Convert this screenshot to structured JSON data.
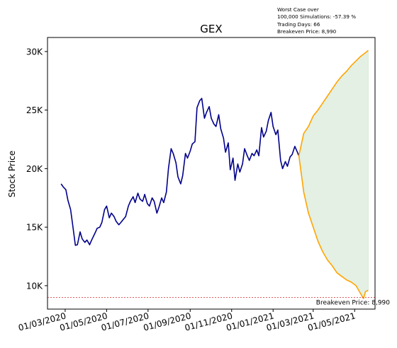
{
  "chart_data": {
    "type": "line",
    "title": "GEX",
    "xlabel": "",
    "ylabel": "Stock Price",
    "ylim": [
      8000,
      31200
    ],
    "y_ticks": [
      10000,
      15000,
      20000,
      25000,
      30000
    ],
    "y_tick_labels": [
      "10K",
      "15K",
      "20K",
      "25K",
      "30K"
    ],
    "x_ticks": [
      "2020-03-01",
      "2020-05-01",
      "2020-07-01",
      "2020-09-01",
      "2020-11-01",
      "2021-01-01",
      "2021-03-01",
      "2021-05-01"
    ],
    "x_tick_labels": [
      "01/03/2020",
      "01/05/2020",
      "01/07/2020",
      "01/09/2020",
      "01/11/2020",
      "01/01/2021",
      "01/03/2021",
      "01/05/2021"
    ],
    "xlim": [
      "2020-02-04",
      "2021-05-31"
    ],
    "grid": false,
    "annotation_lines": [
      "Worst Case over",
      "100,000 Simulations: -57.39 %",
      "Trading Days: 66",
      "Breakeven Price: 8,990"
    ],
    "breakeven": {
      "value": 8990,
      "label": "Breakeven Price: 8,990",
      "color": "#d62728"
    },
    "series": [
      {
        "color": "#00008b",
        "points": [
          [
            "2020-02-24",
            18700
          ],
          [
            "2020-02-27",
            18450
          ],
          [
            "2020-03-02",
            18200
          ],
          [
            "2020-03-05",
            17300
          ],
          [
            "2020-03-09",
            16500
          ],
          [
            "2020-03-12",
            15200
          ],
          [
            "2020-03-16",
            13450
          ],
          [
            "2020-03-19",
            13500
          ],
          [
            "2020-03-23",
            14600
          ],
          [
            "2020-03-26",
            14000
          ],
          [
            "2020-03-30",
            13700
          ],
          [
            "2020-04-02",
            13900
          ],
          [
            "2020-04-06",
            13500
          ],
          [
            "2020-04-09",
            13900
          ],
          [
            "2020-04-14",
            14500
          ],
          [
            "2020-04-17",
            14900
          ],
          [
            "2020-04-21",
            15000
          ],
          [
            "2020-04-24",
            15400
          ],
          [
            "2020-04-28",
            16500
          ],
          [
            "2020-05-01",
            16800
          ],
          [
            "2020-05-05",
            15800
          ],
          [
            "2020-05-08",
            16200
          ],
          [
            "2020-05-12",
            15900
          ],
          [
            "2020-05-15",
            15500
          ],
          [
            "2020-05-19",
            15200
          ],
          [
            "2020-05-22",
            15400
          ],
          [
            "2020-05-26",
            15700
          ],
          [
            "2020-05-29",
            15900
          ],
          [
            "2020-06-02",
            16800
          ],
          [
            "2020-06-05",
            17200
          ],
          [
            "2020-06-09",
            17600
          ],
          [
            "2020-06-12",
            17100
          ],
          [
            "2020-06-16",
            17900
          ],
          [
            "2020-06-19",
            17400
          ],
          [
            "2020-06-23",
            17200
          ],
          [
            "2020-06-26",
            17800
          ],
          [
            "2020-06-30",
            17000
          ],
          [
            "2020-07-03",
            16800
          ],
          [
            "2020-07-07",
            17500
          ],
          [
            "2020-07-10",
            17200
          ],
          [
            "2020-07-14",
            16200
          ],
          [
            "2020-07-17",
            16700
          ],
          [
            "2020-07-21",
            17500
          ],
          [
            "2020-07-24",
            17100
          ],
          [
            "2020-07-28",
            18000
          ],
          [
            "2020-07-31",
            20000
          ],
          [
            "2020-08-04",
            21700
          ],
          [
            "2020-08-07",
            21300
          ],
          [
            "2020-08-11",
            20500
          ],
          [
            "2020-08-14",
            19300
          ],
          [
            "2020-08-18",
            18700
          ],
          [
            "2020-08-21",
            19400
          ],
          [
            "2020-08-25",
            21300
          ],
          [
            "2020-08-28",
            20900
          ],
          [
            "2020-09-01",
            21500
          ],
          [
            "2020-09-04",
            22100
          ],
          [
            "2020-09-08",
            22300
          ],
          [
            "2020-09-11",
            25200
          ],
          [
            "2020-09-15",
            25800
          ],
          [
            "2020-09-18",
            26000
          ],
          [
            "2020-09-22",
            24300
          ],
          [
            "2020-09-25",
            24800
          ],
          [
            "2020-09-29",
            25300
          ],
          [
            "2020-10-02",
            24300
          ],
          [
            "2020-10-06",
            23800
          ],
          [
            "2020-10-09",
            23600
          ],
          [
            "2020-10-13",
            24600
          ],
          [
            "2020-10-16",
            23400
          ],
          [
            "2020-10-20",
            22600
          ],
          [
            "2020-10-23",
            21400
          ],
          [
            "2020-10-27",
            22200
          ],
          [
            "2020-10-30",
            19900
          ],
          [
            "2020-11-03",
            20900
          ],
          [
            "2020-11-06",
            19000
          ],
          [
            "2020-11-10",
            20400
          ],
          [
            "2020-11-13",
            19700
          ],
          [
            "2020-11-17",
            20400
          ],
          [
            "2020-11-20",
            21700
          ],
          [
            "2020-11-24",
            21100
          ],
          [
            "2020-11-27",
            20700
          ],
          [
            "2020-12-01",
            21300
          ],
          [
            "2020-12-04",
            21100
          ],
          [
            "2020-12-08",
            21600
          ],
          [
            "2020-12-11",
            21100
          ],
          [
            "2020-12-15",
            23500
          ],
          [
            "2020-12-18",
            22700
          ],
          [
            "2020-12-22",
            23200
          ],
          [
            "2020-12-25",
            24100
          ],
          [
            "2020-12-29",
            24800
          ],
          [
            "2021-01-01",
            23600
          ],
          [
            "2021-01-05",
            22900
          ],
          [
            "2021-01-08",
            23300
          ],
          [
            "2021-01-12",
            20700
          ],
          [
            "2021-01-15",
            20000
          ],
          [
            "2021-01-19",
            20600
          ],
          [
            "2021-01-22",
            20200
          ],
          [
            "2021-01-26",
            21000
          ],
          [
            "2021-01-29",
            21200
          ],
          [
            "2021-02-02",
            21900
          ],
          [
            "2021-02-05",
            21500
          ],
          [
            "2021-02-08",
            21100
          ]
        ]
      }
    ],
    "simulation_bounds": {
      "color": "#ffa500",
      "fill_color": "#e3f0e3",
      "upper": [
        [
          "2021-02-08",
          21100
        ],
        [
          "2021-02-15",
          23000
        ],
        [
          "2021-02-22",
          23600
        ],
        [
          "2021-03-01",
          24500
        ],
        [
          "2021-03-08",
          25000
        ],
        [
          "2021-03-15",
          25600
        ],
        [
          "2021-03-22",
          26200
        ],
        [
          "2021-03-29",
          26800
        ],
        [
          "2021-04-05",
          27400
        ],
        [
          "2021-04-12",
          27900
        ],
        [
          "2021-04-19",
          28300
        ],
        [
          "2021-04-26",
          28800
        ],
        [
          "2021-05-03",
          29200
        ],
        [
          "2021-05-10",
          29600
        ],
        [
          "2021-05-17",
          29900
        ],
        [
          "2021-05-21",
          30100
        ]
      ],
      "lower": [
        [
          "2021-02-08",
          21100
        ],
        [
          "2021-02-15",
          18000
        ],
        [
          "2021-02-22",
          16200
        ],
        [
          "2021-03-01",
          15000
        ],
        [
          "2021-03-08",
          13800
        ],
        [
          "2021-03-15",
          12900
        ],
        [
          "2021-03-22",
          12200
        ],
        [
          "2021-03-29",
          11700
        ],
        [
          "2021-04-05",
          11100
        ],
        [
          "2021-04-12",
          10800
        ],
        [
          "2021-04-19",
          10500
        ],
        [
          "2021-04-26",
          10300
        ],
        [
          "2021-05-03",
          10000
        ],
        [
          "2021-05-10",
          9300
        ],
        [
          "2021-05-14",
          8900
        ],
        [
          "2021-05-17",
          9500
        ],
        [
          "2021-05-21",
          9600
        ]
      ]
    }
  }
}
